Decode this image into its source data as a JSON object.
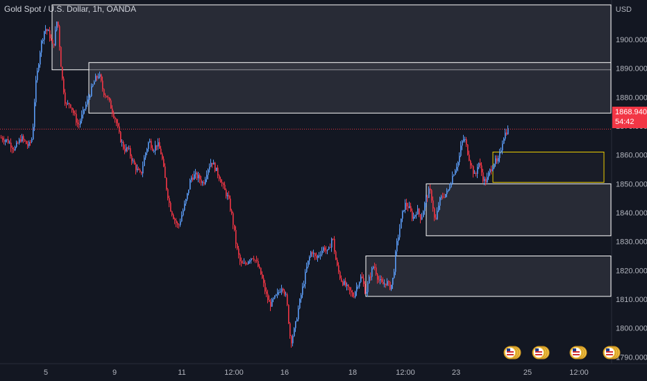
{
  "header": {
    "symbol": "Gold Spot / U.S. Dollar, 1h, OANDA",
    "currency": "USD"
  },
  "price_tag": {
    "price": "1868.940",
    "countdown": "54:42"
  },
  "colors": {
    "background": "#131722",
    "up_candle": "#5b9cf6",
    "down_candle": "#f23645",
    "zone_border": "#ffffff",
    "zone_fill": "#3a3d47",
    "highlight_zone_border": "#f0d000",
    "axis_text": "#b2b5be",
    "grid": "#1e222d"
  },
  "economic_event_icons": [
    "us-flag-icon",
    "us-flag-icon",
    "us-flag-icon",
    "us-flag-icon"
  ],
  "chart_data": {
    "type": "candlestick",
    "title": "Gold Spot / U.S. Dollar, 1h, OANDA",
    "xlabel": "",
    "ylabel": "USD",
    "ylim": [
      1786,
      1912
    ],
    "y_ticks": [
      1790,
      1800,
      1810,
      1820,
      1830,
      1840,
      1850,
      1860,
      1870,
      1880,
      1890,
      1900
    ],
    "y_tick_labels": [
      "1790.000",
      "1800.000",
      "1810.000",
      "1820.000",
      "1830.000",
      "1840.000",
      "1850.000",
      "1860.000",
      "1870.000",
      "1880.000",
      "1890.000",
      "1900.000"
    ],
    "x_tick_labels": [
      "5",
      "9",
      "11",
      "12:00",
      "16",
      "18",
      "12:00",
      "23",
      "25",
      "12:00"
    ],
    "last_price": 1868.94,
    "close_path": [
      [
        0,
        1866
      ],
      [
        10,
        1865
      ],
      [
        20,
        1862
      ],
      [
        30,
        1866
      ],
      [
        40,
        1863
      ],
      [
        46,
        1866
      ],
      [
        50,
        1883
      ],
      [
        58,
        1898
      ],
      [
        64,
        1904
      ],
      [
        70,
        1902
      ],
      [
        76,
        1897
      ],
      [
        82,
        1908
      ],
      [
        88,
        1888
      ],
      [
        94,
        1877
      ],
      [
        100,
        1878
      ],
      [
        106,
        1874
      ],
      [
        112,
        1870
      ],
      [
        118,
        1874
      ],
      [
        124,
        1878
      ],
      [
        130,
        1882
      ],
      [
        136,
        1886
      ],
      [
        142,
        1888
      ],
      [
        148,
        1882
      ],
      [
        154,
        1880
      ],
      [
        160,
        1876
      ],
      [
        166,
        1872
      ],
      [
        172,
        1866
      ],
      [
        178,
        1862
      ],
      [
        184,
        1862
      ],
      [
        190,
        1858
      ],
      [
        196,
        1855
      ],
      [
        202,
        1853
      ],
      [
        208,
        1860
      ],
      [
        214,
        1865
      ],
      [
        220,
        1862
      ],
      [
        226,
        1864
      ],
      [
        232,
        1860
      ],
      [
        238,
        1850
      ],
      [
        244,
        1842
      ],
      [
        250,
        1838
      ],
      [
        256,
        1835
      ],
      [
        262,
        1840
      ],
      [
        268,
        1845
      ],
      [
        274,
        1852
      ],
      [
        280,
        1853
      ],
      [
        286,
        1852
      ],
      [
        292,
        1850
      ],
      [
        298,
        1855
      ],
      [
        304,
        1858
      ],
      [
        310,
        1855
      ],
      [
        316,
        1852
      ],
      [
        322,
        1848
      ],
      [
        328,
        1845
      ],
      [
        334,
        1838
      ],
      [
        340,
        1828
      ],
      [
        346,
        1822
      ],
      [
        352,
        1822
      ],
      [
        358,
        1824
      ],
      [
        364,
        1825
      ],
      [
        370,
        1822
      ],
      [
        376,
        1818
      ],
      [
        382,
        1812
      ],
      [
        388,
        1808
      ],
      [
        394,
        1810
      ],
      [
        400,
        1812
      ],
      [
        406,
        1815
      ],
      [
        412,
        1810
      ],
      [
        418,
        1795
      ],
      [
        424,
        1800
      ],
      [
        430,
        1808
      ],
      [
        436,
        1815
      ],
      [
        442,
        1822
      ],
      [
        448,
        1827
      ],
      [
        454,
        1824
      ],
      [
        460,
        1826
      ],
      [
        466,
        1828
      ],
      [
        472,
        1826
      ],
      [
        478,
        1832
      ],
      [
        484,
        1822
      ],
      [
        490,
        1817
      ],
      [
        496,
        1815
      ],
      [
        502,
        1813
      ],
      [
        508,
        1811
      ],
      [
        514,
        1815
      ],
      [
        520,
        1818
      ],
      [
        526,
        1812
      ],
      [
        532,
        1818
      ],
      [
        538,
        1822
      ],
      [
        544,
        1817
      ],
      [
        550,
        1815
      ],
      [
        556,
        1816
      ],
      [
        562,
        1814
      ],
      [
        566,
        1818
      ],
      [
        570,
        1828
      ],
      [
        576,
        1836
      ],
      [
        582,
        1843
      ],
      [
        588,
        1842
      ],
      [
        594,
        1838
      ],
      [
        600,
        1841
      ],
      [
        606,
        1838
      ],
      [
        612,
        1844
      ],
      [
        618,
        1848
      ],
      [
        622,
        1844
      ],
      [
        626,
        1836
      ],
      [
        632,
        1844
      ],
      [
        638,
        1846
      ],
      [
        644,
        1847
      ],
      [
        650,
        1852
      ],
      [
        656,
        1856
      ],
      [
        660,
        1858
      ],
      [
        664,
        1864
      ],
      [
        668,
        1866
      ],
      [
        672,
        1862
      ],
      [
        676,
        1858
      ],
      [
        680,
        1855
      ],
      [
        684,
        1852
      ],
      [
        688,
        1858
      ],
      [
        692,
        1855
      ],
      [
        696,
        1851
      ],
      [
        700,
        1851
      ],
      [
        704,
        1854
      ],
      [
        708,
        1856
      ],
      [
        712,
        1858
      ],
      [
        716,
        1857
      ],
      [
        720,
        1861
      ],
      [
        724,
        1866
      ],
      [
        728,
        1868
      ],
      [
        732,
        1868.94
      ]
    ],
    "zones": [
      {
        "top": 1912,
        "bottom": 1889.5,
        "x_start": 75,
        "highlight": false
      },
      {
        "top": 1892,
        "bottom": 1874.5,
        "x_start": 128,
        "highlight": false
      },
      {
        "top": 1850,
        "bottom": 1832,
        "x_start": 614,
        "highlight": false
      },
      {
        "top": 1825,
        "bottom": 1811,
        "x_start": 527,
        "highlight": false
      },
      {
        "top": 1861,
        "bottom": 1850.5,
        "x_start": 710,
        "x_end": 870,
        "highlight": true
      }
    ],
    "current_price_line": 1868.94,
    "legend": "none",
    "grid": false
  }
}
